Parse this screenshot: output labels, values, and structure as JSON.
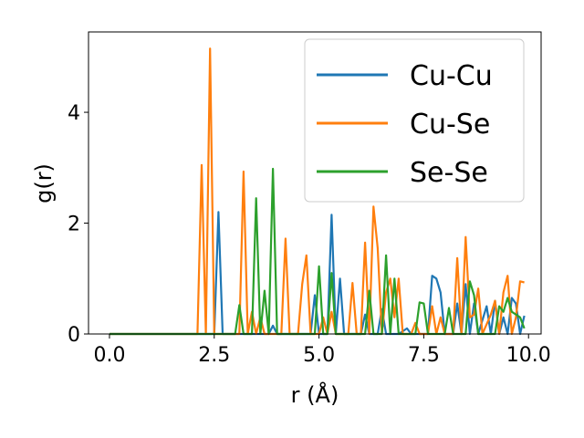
{
  "chart_data": {
    "type": "line",
    "title": "",
    "xlabel": "r (Å)",
    "ylabel": "g(r)",
    "xlim": [
      -0.5,
      10.3
    ],
    "ylim": [
      0,
      5.45
    ],
    "xticks": [
      0.0,
      2.5,
      5.0,
      7.5,
      10.0
    ],
    "xtick_labels": [
      "0.0",
      "2.5",
      "5.0",
      "7.5",
      "10.0"
    ],
    "yticks": [
      0,
      2,
      4
    ],
    "ytick_labels": [
      "0",
      "2",
      "4"
    ],
    "grid": false,
    "legend_position": "top-right",
    "series": [
      {
        "name": "Cu-Cu",
        "color": "#1f77b4",
        "points": [
          [
            0.0,
            0
          ],
          [
            2.5,
            0
          ],
          [
            2.6,
            2.2
          ],
          [
            2.7,
            0
          ],
          [
            3.8,
            0
          ],
          [
            3.9,
            0.15
          ],
          [
            4.0,
            0
          ],
          [
            4.8,
            0
          ],
          [
            4.9,
            0.7
          ],
          [
            5.0,
            0
          ],
          [
            5.2,
            0
          ],
          [
            5.3,
            2.15
          ],
          [
            5.4,
            0
          ],
          [
            5.5,
            1.0
          ],
          [
            5.6,
            0
          ],
          [
            6.0,
            0
          ],
          [
            6.1,
            0.35
          ],
          [
            6.2,
            0
          ],
          [
            6.4,
            0
          ],
          [
            6.5,
            0.45
          ],
          [
            6.6,
            0
          ],
          [
            6.9,
            0
          ],
          [
            7.0,
            0.05
          ],
          [
            7.1,
            0.1
          ],
          [
            7.2,
            0
          ],
          [
            7.6,
            0
          ],
          [
            7.7,
            1.05
          ],
          [
            7.8,
            1.0
          ],
          [
            7.9,
            0.75
          ],
          [
            8.0,
            0
          ],
          [
            8.2,
            0
          ],
          [
            8.3,
            0.55
          ],
          [
            8.4,
            0
          ],
          [
            8.5,
            0.9
          ],
          [
            8.6,
            0
          ],
          [
            8.7,
            0.55
          ],
          [
            8.8,
            0
          ],
          [
            9.0,
            0.5
          ],
          [
            9.1,
            0
          ],
          [
            9.2,
            0.6
          ],
          [
            9.3,
            0
          ],
          [
            9.4,
            0.3
          ],
          [
            9.5,
            0
          ],
          [
            9.6,
            0.65
          ],
          [
            9.7,
            0.55
          ],
          [
            9.8,
            0
          ],
          [
            9.9,
            0.33
          ]
        ]
      },
      {
        "name": "Cu-Se",
        "color": "#ff7f0e",
        "points": [
          [
            0.0,
            0
          ],
          [
            2.1,
            0
          ],
          [
            2.2,
            3.05
          ],
          [
            2.3,
            0
          ],
          [
            2.4,
            5.15
          ],
          [
            2.5,
            0
          ],
          [
            3.1,
            0
          ],
          [
            3.2,
            2.93
          ],
          [
            3.3,
            0
          ],
          [
            3.4,
            0.4
          ],
          [
            3.5,
            0
          ],
          [
            3.6,
            0.3
          ],
          [
            3.7,
            0
          ],
          [
            4.1,
            0
          ],
          [
            4.2,
            1.72
          ],
          [
            4.3,
            0
          ],
          [
            4.5,
            0
          ],
          [
            4.6,
            0.9
          ],
          [
            4.7,
            1.42
          ],
          [
            4.8,
            0
          ],
          [
            5.0,
            0
          ],
          [
            5.1,
            0.3
          ],
          [
            5.2,
            0
          ],
          [
            5.3,
            0.4
          ],
          [
            5.4,
            0
          ],
          [
            5.7,
            0
          ],
          [
            5.8,
            0.92
          ],
          [
            5.9,
            0
          ],
          [
            6.0,
            0
          ],
          [
            6.1,
            1.65
          ],
          [
            6.2,
            0
          ],
          [
            6.3,
            2.3
          ],
          [
            6.4,
            1.55
          ],
          [
            6.5,
            0
          ],
          [
            6.6,
            0.75
          ],
          [
            6.7,
            1.0
          ],
          [
            6.8,
            0.3
          ],
          [
            6.9,
            1.0
          ],
          [
            7.0,
            0
          ],
          [
            7.2,
            0
          ],
          [
            7.3,
            0.2
          ],
          [
            7.4,
            0
          ],
          [
            7.6,
            0
          ],
          [
            7.7,
            0.5
          ],
          [
            7.8,
            0
          ],
          [
            7.9,
            0.3
          ],
          [
            8.0,
            0
          ],
          [
            8.2,
            0
          ],
          [
            8.3,
            1.37
          ],
          [
            8.4,
            0
          ],
          [
            8.5,
            1.75
          ],
          [
            8.6,
            0.3
          ],
          [
            8.7,
            0.35
          ],
          [
            8.8,
            0.82
          ],
          [
            8.9,
            0
          ],
          [
            9.1,
            0.35
          ],
          [
            9.2,
            0.6
          ],
          [
            9.3,
            0
          ],
          [
            9.4,
            0.75
          ],
          [
            9.5,
            1.05
          ],
          [
            9.6,
            0
          ],
          [
            9.7,
            0.3
          ],
          [
            9.8,
            0.95
          ],
          [
            9.9,
            0.93
          ]
        ]
      },
      {
        "name": "Se-Se",
        "color": "#2ca02c",
        "points": [
          [
            0.0,
            0
          ],
          [
            3.0,
            0
          ],
          [
            3.1,
            0.52
          ],
          [
            3.2,
            0
          ],
          [
            3.4,
            0
          ],
          [
            3.5,
            2.45
          ],
          [
            3.6,
            0
          ],
          [
            3.7,
            0.78
          ],
          [
            3.8,
            0
          ],
          [
            3.9,
            2.98
          ],
          [
            4.0,
            0
          ],
          [
            4.9,
            0
          ],
          [
            5.0,
            1.22
          ],
          [
            5.1,
            0
          ],
          [
            5.2,
            0
          ],
          [
            5.3,
            1.1
          ],
          [
            5.4,
            0
          ],
          [
            6.1,
            0
          ],
          [
            6.2,
            0.78
          ],
          [
            6.3,
            0
          ],
          [
            6.5,
            0
          ],
          [
            6.6,
            1.42
          ],
          [
            6.7,
            0
          ],
          [
            6.8,
            1.0
          ],
          [
            6.9,
            0
          ],
          [
            7.3,
            0
          ],
          [
            7.4,
            0.57
          ],
          [
            7.5,
            0.55
          ],
          [
            7.6,
            0
          ],
          [
            8.0,
            0
          ],
          [
            8.1,
            0.47
          ],
          [
            8.2,
            0
          ],
          [
            8.5,
            0
          ],
          [
            8.6,
            0.95
          ],
          [
            8.7,
            0.7
          ],
          [
            8.8,
            0
          ],
          [
            9.2,
            0
          ],
          [
            9.3,
            0.5
          ],
          [
            9.4,
            0.4
          ],
          [
            9.5,
            0.65
          ],
          [
            9.6,
            0.4
          ],
          [
            9.7,
            0.35
          ],
          [
            9.8,
            0.3
          ],
          [
            9.9,
            0.1
          ]
        ]
      }
    ]
  }
}
